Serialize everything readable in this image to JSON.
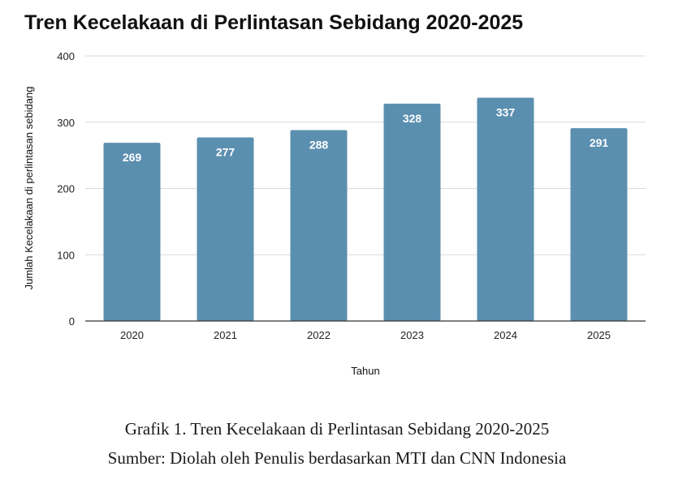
{
  "chart_data": {
    "type": "bar",
    "title": "Tren Kecelakaan di Perlintasan Sebidang 2020-2025",
    "xlabel": "Tahun",
    "ylabel": "Jumlah Kecelakaan di perlintasan sebidang",
    "categories": [
      "2020",
      "2021",
      "2022",
      "2023",
      "2024",
      "2025"
    ],
    "values": [
      269,
      277,
      288,
      328,
      337,
      291
    ],
    "data_labels": [
      "269",
      "277",
      "288",
      "328",
      "337",
      "291"
    ],
    "ylim": [
      0,
      400
    ],
    "yticks": [
      "0",
      "100",
      "200",
      "300",
      "400"
    ],
    "grid": true,
    "legend": "none",
    "bar_color": "#5b8fb0"
  },
  "caption": {
    "line1": "Grafik 1. Tren Kecelakaan di Perlintasan Sebidang 2020-2025",
    "line2": "Sumber: Diolah oleh Penulis berdasarkan MTI dan CNN Indonesia"
  }
}
